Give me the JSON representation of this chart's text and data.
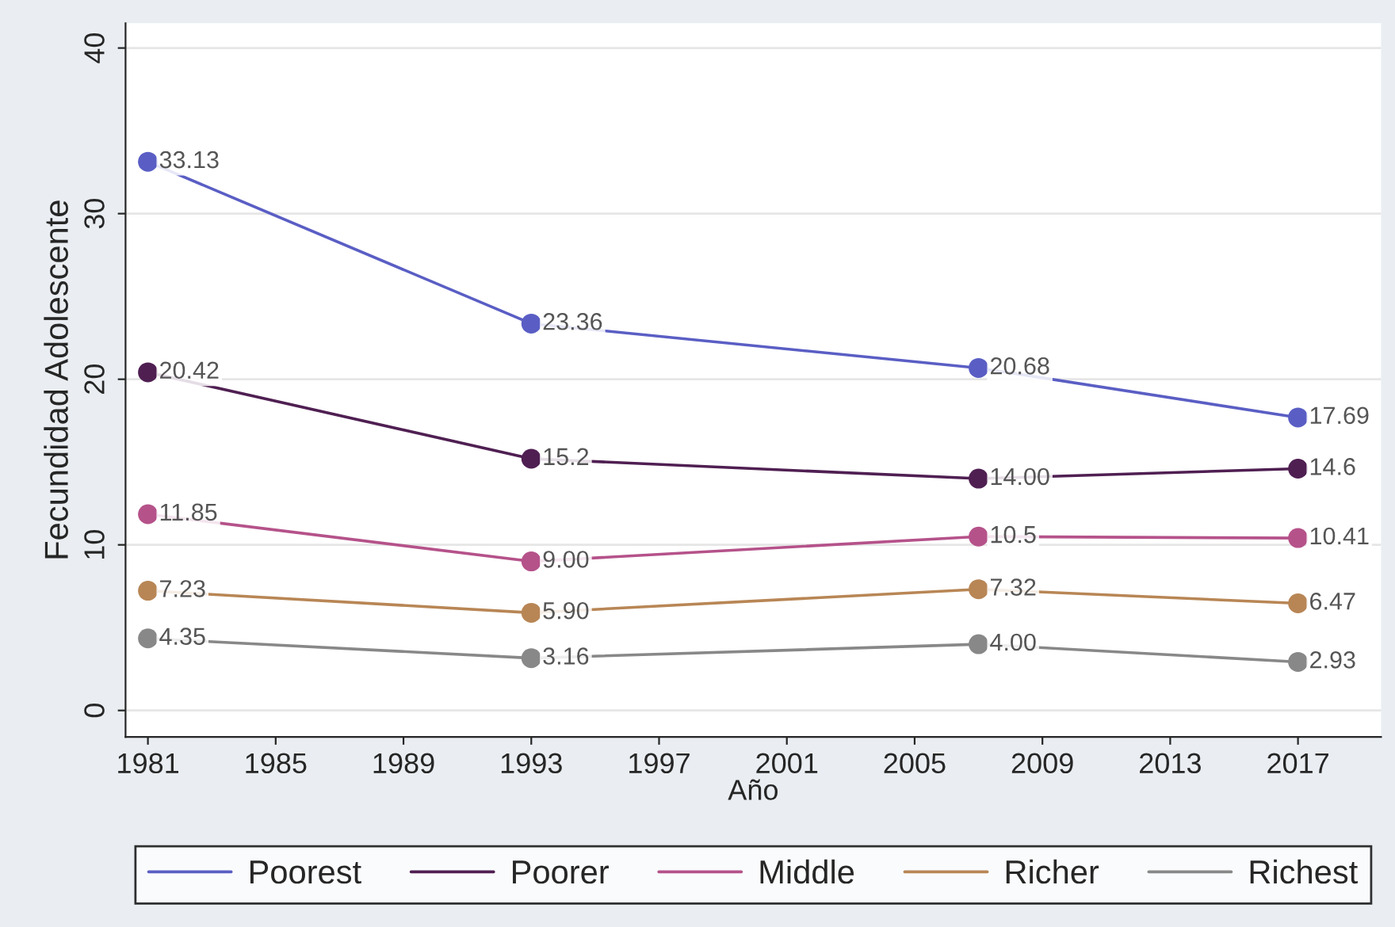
{
  "chart_data": {
    "type": "line",
    "xlabel": "Año",
    "ylabel": "Fecundidad Adolescente",
    "x": [
      1981,
      1993,
      2007,
      2017
    ],
    "xlim": [
      1980.3,
      2019.6
    ],
    "xticks": [
      1981,
      1985,
      1989,
      1993,
      1997,
      2001,
      2005,
      2009,
      2013,
      2017
    ],
    "ylim": [
      -1.6,
      41.5
    ],
    "yticks": [
      0,
      10,
      20,
      30,
      40
    ],
    "grid": "y",
    "legend": "bottom",
    "marker": "circle",
    "line_style": "solid",
    "series": [
      {
        "name": "Poorest",
        "color": "#5a5ec4",
        "values": [
          33.13,
          23.36,
          20.68,
          17.69
        ],
        "value_labels": [
          "33.13",
          "23.36",
          "20.68",
          "17.69"
        ]
      },
      {
        "name": "Poorer",
        "color": "#4f1f52",
        "values": [
          20.42,
          15.2,
          14.0,
          14.6
        ],
        "value_labels": [
          "20.42",
          "15.2",
          "14.00",
          "14.6"
        ]
      },
      {
        "name": "Middle",
        "color": "#b5528a",
        "values": [
          11.85,
          9.0,
          10.5,
          10.41
        ],
        "value_labels": [
          "11.85",
          "9.00",
          "10.5",
          "10.41"
        ]
      },
      {
        "name": "Richer",
        "color": "#b88655",
        "values": [
          7.23,
          5.9,
          7.32,
          6.47
        ],
        "value_labels": [
          "7.23",
          "5.90",
          "7.32",
          "6.47"
        ]
      },
      {
        "name": "Richest",
        "color": "#888888",
        "values": [
          4.35,
          3.16,
          4.0,
          2.93
        ],
        "value_labels": [
          "4.35",
          "3.16",
          "4.00",
          "2.93"
        ]
      }
    ]
  }
}
